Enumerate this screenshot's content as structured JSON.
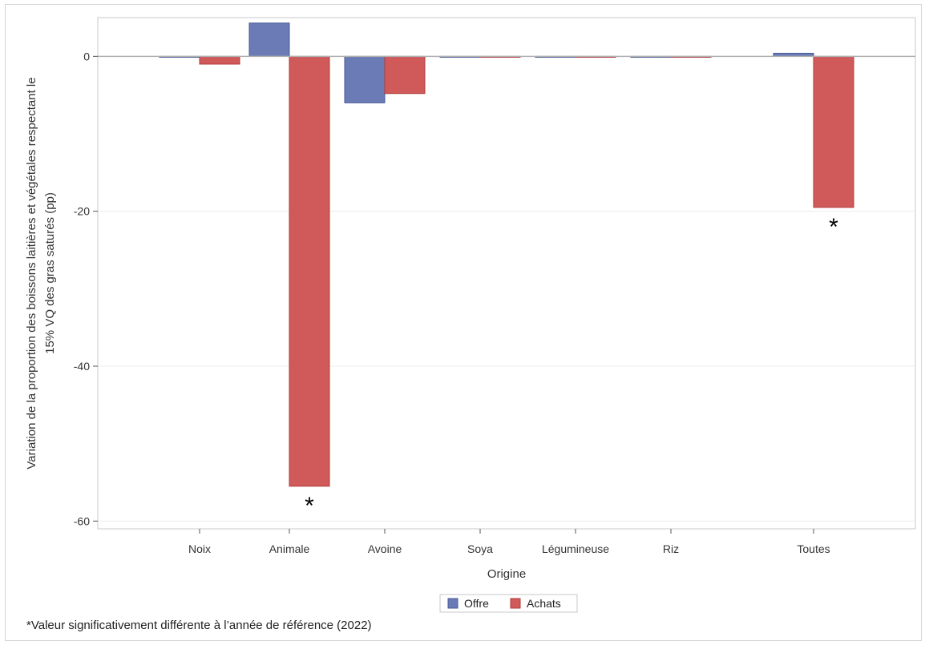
{
  "chart_data": {
    "type": "bar",
    "categories": [
      "Noix",
      "Animale",
      "Avoine",
      "Soya",
      "Légumineuse",
      "Riz",
      "Toutes"
    ],
    "series": [
      {
        "name": "Offre",
        "values": [
          0.0,
          4.3,
          -6.0,
          0.0,
          0.0,
          0.0,
          0.4
        ],
        "color": "#6a7bb5"
      },
      {
        "name": "Achats",
        "values": [
          -1.0,
          -55.5,
          -4.8,
          0.0,
          0.0,
          0.0,
          -19.5
        ],
        "color": "#d05a5a"
      }
    ],
    "significant": [
      {
        "category": "Animale",
        "series": "Achats",
        "marker": "*"
      },
      {
        "category": "Toutes",
        "series": "Achats",
        "marker": "*"
      }
    ],
    "xlabel": "Origine",
    "ylabel": [
      "Variation de la proportion des boissons laitières et végétales respectant le",
      "15% VQ des gras saturés (pp)"
    ],
    "ylim": [
      -61,
      5
    ],
    "yticks": [
      0,
      -20,
      -40,
      -60
    ],
    "grid": true,
    "legend_position": "bottom-center",
    "footnote": "*Valeur significativement différente à l’année de référence (2022)"
  }
}
